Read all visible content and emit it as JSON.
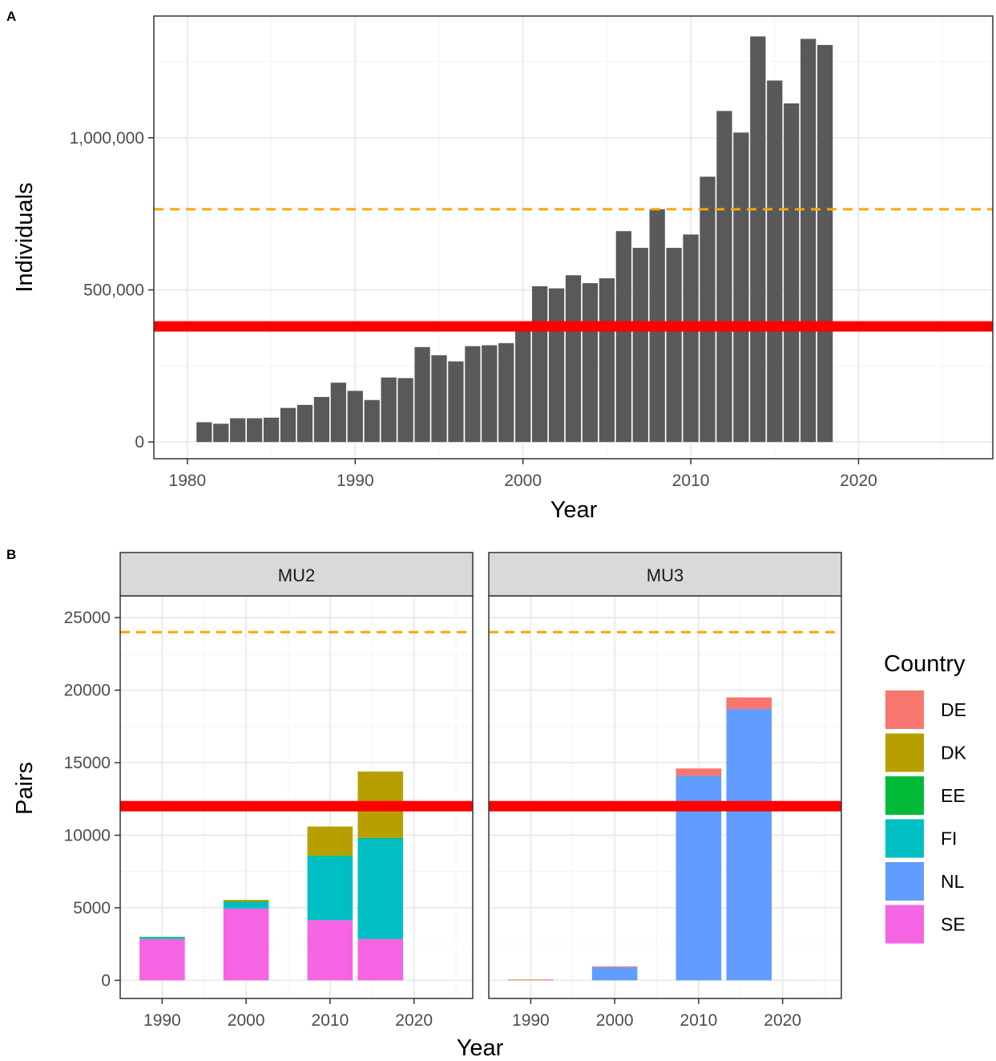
{
  "chart_data": [
    {
      "panel": "A",
      "type": "bar",
      "xlabel": "Year",
      "ylabel": "Individuals",
      "xlim": [
        1978,
        2028
      ],
      "ylim": [
        -55000,
        1400000
      ],
      "x_ticks": [
        "1980",
        "1990",
        "2000",
        "2010",
        "2020"
      ],
      "x_tick_values": [
        1980,
        1990,
        2000,
        2010,
        2020
      ],
      "y_ticks": [
        "0",
        "500,000",
        "1,000,000"
      ],
      "y_tick_values": [
        0,
        500000,
        1000000
      ],
      "grid": true,
      "bar_color": "#595959",
      "x": [
        1981,
        1982,
        1983,
        1984,
        1985,
        1986,
        1987,
        1988,
        1989,
        1990,
        1991,
        1992,
        1993,
        1994,
        1995,
        1996,
        1997,
        1998,
        1999,
        2000,
        2001,
        2002,
        2003,
        2004,
        2005,
        2006,
        2007,
        2008,
        2009,
        2010,
        2011,
        2012,
        2013,
        2014,
        2015,
        2016,
        2017,
        2018
      ],
      "values": [
        65000,
        60000,
        78000,
        78000,
        80000,
        112000,
        122000,
        148000,
        195000,
        168000,
        138000,
        212000,
        210000,
        312000,
        285000,
        265000,
        315000,
        318000,
        325000,
        380000,
        512000,
        505000,
        548000,
        522000,
        538000,
        693000,
        638000,
        765000,
        638000,
        682000,
        872000,
        1088000,
        1017000,
        1333000,
        1188000,
        1113000,
        1325000,
        1305000
      ],
      "reference_lines": [
        {
          "value": 380000,
          "color": "#ff0000",
          "style": "solid"
        },
        {
          "value": 765000,
          "color": "#ffa500",
          "style": "dashed"
        }
      ]
    },
    {
      "panel": "B",
      "type": "bar",
      "stacked": true,
      "xlabel": "Year",
      "ylabel": "Pairs",
      "xlim": [
        1985,
        2027
      ],
      "ylim": [
        -1250,
        26500
      ],
      "x_ticks": [
        "1990",
        "2000",
        "2010",
        "2020"
      ],
      "x_tick_values": [
        1990,
        2000,
        2010,
        2020
      ],
      "y_ticks": [
        "0",
        "5000",
        "10000",
        "15000",
        "20000",
        "25000"
      ],
      "y_tick_values": [
        0,
        5000,
        10000,
        15000,
        20000,
        25000
      ],
      "grid": true,
      "legend_position": "right",
      "legend": {
        "title": "Country",
        "entries": [
          {
            "key": "DE",
            "label": "DE",
            "color": "#f8766d"
          },
          {
            "key": "DK",
            "label": "DK",
            "color": "#b79f00"
          },
          {
            "key": "EE",
            "label": "EE",
            "color": "#00ba38"
          },
          {
            "key": "FI",
            "label": "FI",
            "color": "#00bfc4"
          },
          {
            "key": "NL",
            "label": "NL",
            "color": "#619cff"
          },
          {
            "key": "SE",
            "label": "SE",
            "color": "#f564e3"
          }
        ]
      },
      "stack_order": [
        "SE",
        "NL",
        "FI",
        "EE",
        "DK",
        "DE"
      ],
      "reference_lines": [
        {
          "value": 12000,
          "color": "#ff0000",
          "style": "solid"
        },
        {
          "value": 24000,
          "color": "#ffa500",
          "style": "dashed"
        }
      ],
      "facets": [
        {
          "label": "MU2",
          "bars": [
            {
              "x": 1990,
              "values": {
                "SE": 2850,
                "FI": 120,
                "EE": 20
              }
            },
            {
              "x": 2000,
              "values": {
                "SE": 4950,
                "FI": 450,
                "EE": 30,
                "DK": 120
              }
            },
            {
              "x": 2010,
              "values": {
                "SE": 4150,
                "FI": 4400,
                "EE": 50,
                "DK": 2000
              }
            },
            {
              "x": 2016,
              "values": {
                "SE": 2850,
                "FI": 6950,
                "EE": 20,
                "DK": 4570
              }
            }
          ]
        },
        {
          "label": "MU3",
          "bars": [
            {
              "x": 1990,
              "values": {
                "DE": 60
              }
            },
            {
              "x": 2000,
              "values": {
                "NL": 900,
                "DE": 60
              }
            },
            {
              "x": 2010,
              "values": {
                "NL": 14100,
                "DE": 500
              }
            },
            {
              "x": 2016,
              "values": {
                "NL": 18700,
                "DE": 800
              }
            }
          ]
        }
      ]
    }
  ],
  "labels": {
    "panel_a": "A",
    "panel_b": "B"
  }
}
